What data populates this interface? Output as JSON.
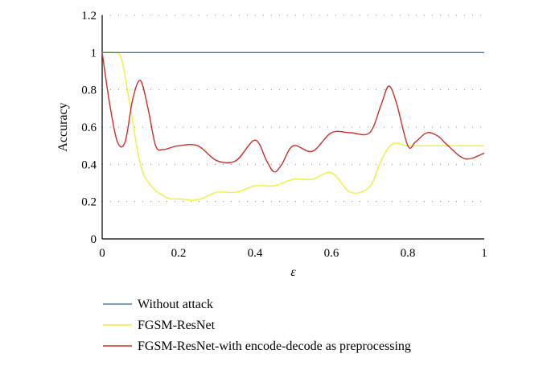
{
  "chart_data": {
    "type": "line",
    "title": "",
    "xlabel": "ε",
    "ylabel": "Accuracy",
    "xlim": [
      0,
      1
    ],
    "ylim": [
      0,
      1.2
    ],
    "xticks": [
      "0",
      "0.2",
      "0.4",
      "0.6",
      "0.8",
      "1"
    ],
    "yticks": [
      "0",
      "0.2",
      "0.4",
      "0.6",
      "0.8",
      "1",
      "1.2"
    ],
    "grid": "horizontal dotted",
    "legend_position": "bottom",
    "series": [
      {
        "name": "Without attack",
        "color": "#4a7ea8",
        "x": [
          0,
          0.1,
          0.2,
          0.3,
          0.4,
          0.5,
          0.6,
          0.7,
          0.8,
          0.9,
          1.0
        ],
        "y": [
          1.0,
          1.0,
          1.0,
          1.0,
          1.0,
          1.0,
          1.0,
          1.0,
          1.0,
          1.0,
          1.0
        ]
      },
      {
        "name": "FGSM-ResNet",
        "color": "#f0ef3a",
        "x": [
          0,
          0.03,
          0.05,
          0.07,
          0.1,
          0.13,
          0.17,
          0.2,
          0.25,
          0.3,
          0.35,
          0.4,
          0.45,
          0.5,
          0.55,
          0.6,
          0.65,
          0.7,
          0.73,
          0.76,
          0.8,
          0.85,
          0.9,
          0.95,
          1.0
        ],
        "y": [
          1.0,
          1.0,
          0.97,
          0.75,
          0.4,
          0.28,
          0.22,
          0.215,
          0.21,
          0.25,
          0.25,
          0.285,
          0.285,
          0.32,
          0.32,
          0.355,
          0.25,
          0.28,
          0.42,
          0.51,
          0.5,
          0.5,
          0.5,
          0.5,
          0.5
        ]
      },
      {
        "name": "FGSM-ResNet-with encode-decode as preprocessing",
        "color": "#c8302a",
        "x": [
          0,
          0.02,
          0.04,
          0.06,
          0.08,
          0.1,
          0.12,
          0.14,
          0.16,
          0.18,
          0.2,
          0.25,
          0.3,
          0.35,
          0.4,
          0.43,
          0.45,
          0.47,
          0.5,
          0.55,
          0.6,
          0.65,
          0.7,
          0.73,
          0.75,
          0.77,
          0.8,
          0.82,
          0.85,
          0.88,
          0.9,
          0.95,
          1.0
        ],
        "y": [
          1.0,
          0.72,
          0.52,
          0.52,
          0.75,
          0.85,
          0.7,
          0.5,
          0.48,
          0.49,
          0.5,
          0.5,
          0.42,
          0.42,
          0.53,
          0.42,
          0.36,
          0.4,
          0.5,
          0.47,
          0.57,
          0.57,
          0.57,
          0.72,
          0.82,
          0.73,
          0.5,
          0.52,
          0.57,
          0.55,
          0.51,
          0.43,
          0.46
        ]
      }
    ]
  }
}
